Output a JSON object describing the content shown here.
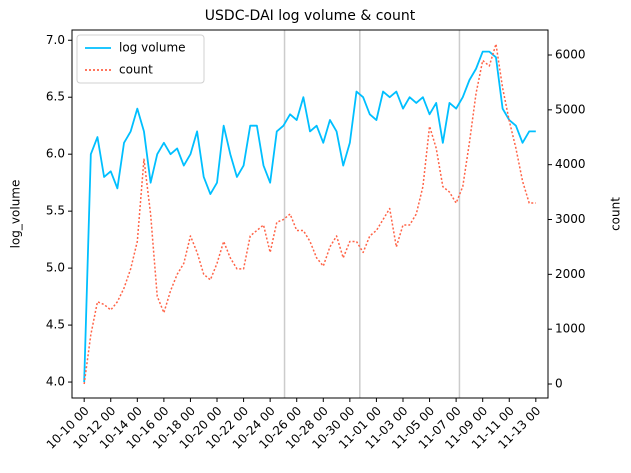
{
  "chart_data": {
    "type": "line",
    "title": "USDC-DAI log volume & count",
    "ylabel": "log_volume",
    "y2label": "count",
    "x": [
      "10-10 00",
      "10-10 12",
      "10-11 00",
      "10-11 12",
      "10-12 00",
      "10-12 12",
      "10-13 00",
      "10-13 12",
      "10-14 00",
      "10-14 12",
      "10-15 00",
      "10-15 12",
      "10-16 00",
      "10-16 12",
      "10-17 00",
      "10-17 12",
      "10-18 00",
      "10-18 12",
      "10-19 00",
      "10-19 12",
      "10-20 00",
      "10-20 12",
      "10-21 00",
      "10-21 12",
      "10-22 00",
      "10-22 12",
      "10-23 00",
      "10-23 12",
      "10-24 00",
      "10-24 12",
      "10-25 00",
      "10-25 12",
      "10-26 00",
      "10-26 12",
      "10-27 00",
      "10-27 12",
      "10-28 00",
      "10-28 12",
      "10-29 00",
      "10-29 12",
      "10-30 00",
      "10-30 12",
      "10-31 00",
      "10-31 12",
      "11-01 00",
      "11-01 12",
      "11-02 00",
      "11-02 12",
      "11-03 00",
      "11-03 12",
      "11-04 00",
      "11-04 12",
      "11-05 00",
      "11-05 12",
      "11-06 00",
      "11-06 12",
      "11-07 00",
      "11-07 12",
      "11-08 00",
      "11-08 12",
      "11-09 00",
      "11-09 12",
      "11-10 00",
      "11-10 12",
      "11-11 00",
      "11-11 12",
      "11-12 00",
      "11-12 12",
      "11-13 00"
    ],
    "series": [
      {
        "name": "log volume",
        "color": "#00bfff",
        "dash": "solid",
        "axis": "y",
        "values": [
          4.0,
          6.0,
          6.15,
          5.8,
          5.85,
          5.7,
          6.1,
          6.2,
          6.4,
          6.2,
          5.75,
          6.0,
          6.1,
          6.0,
          6.05,
          5.9,
          6.0,
          6.2,
          5.8,
          5.65,
          5.75,
          6.25,
          6.0,
          5.8,
          5.9,
          6.25,
          6.25,
          5.9,
          5.75,
          6.2,
          6.25,
          6.35,
          6.3,
          6.5,
          6.2,
          6.25,
          6.1,
          6.3,
          6.2,
          5.9,
          6.1,
          6.55,
          6.5,
          6.35,
          6.3,
          6.55,
          6.5,
          6.55,
          6.4,
          6.5,
          6.45,
          6.5,
          6.35,
          6.45,
          6.1,
          6.45,
          6.4,
          6.5,
          6.65,
          6.75,
          6.9,
          6.9,
          6.85,
          6.4,
          6.3,
          6.25,
          6.1,
          6.2,
          6.2
        ]
      },
      {
        "name": "count",
        "color": "#ff6347",
        "dash": "dotted",
        "axis": "y2",
        "values": [
          0,
          900,
          1500,
          1450,
          1350,
          1500,
          1750,
          2100,
          2600,
          4100,
          3100,
          1600,
          1300,
          1700,
          2000,
          2200,
          2700,
          2400,
          2000,
          1900,
          2200,
          2600,
          2300,
          2100,
          2100,
          2700,
          2800,
          2900,
          2400,
          2950,
          3000,
          3100,
          2800,
          2800,
          2600,
          2300,
          2150,
          2500,
          2700,
          2300,
          2600,
          2600,
          2400,
          2700,
          2800,
          3000,
          3200,
          2500,
          2900,
          2900,
          3100,
          3600,
          4700,
          4300,
          3600,
          3500,
          3300,
          3600,
          4400,
          5300,
          5900,
          5800,
          6200,
          5400,
          4800,
          4300,
          3700,
          3300,
          3300
        ]
      }
    ],
    "xlim": [
      "10-09 02",
      "11-13 22"
    ],
    "xticks": [
      "10-10 00",
      "10-12 00",
      "10-14 00",
      "10-16 00",
      "10-18 00",
      "10-20 00",
      "10-22 00",
      "10-24 00",
      "10-26 00",
      "10-28 00",
      "10-30 00",
      "11-01 00",
      "11-03 00",
      "11-05 00",
      "11-07 00",
      "11-09 00",
      "11-11 00",
      "11-13 00"
    ],
    "ylim": [
      3.86,
      7.09
    ],
    "yticks": [
      {
        "value": 4,
        "label": "4.0"
      },
      4.5,
      {
        "value": 5,
        "label": "5.0"
      },
      5.5,
      {
        "value": 6,
        "label": "6.0"
      },
      6.5,
      {
        "value": 7,
        "label": "7.0"
      }
    ],
    "y2lim": [
      -255,
      6456
    ],
    "y2ticks": [
      0,
      1000,
      2000,
      3000,
      4000,
      5000,
      6000
    ],
    "vlines": [
      "10-25 02",
      "10-30 18",
      "11-07 06"
    ],
    "vline_color": "#cccccc",
    "legend": "upper left"
  }
}
